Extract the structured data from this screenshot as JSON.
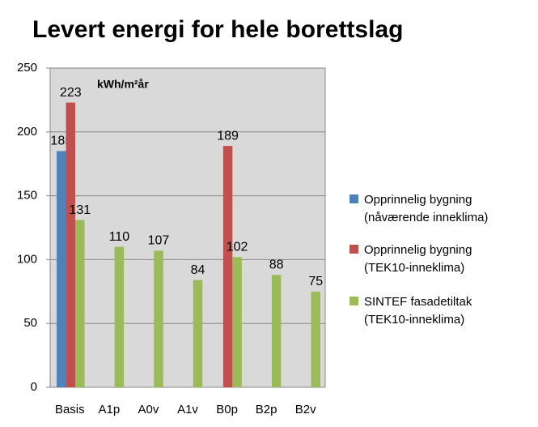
{
  "chart_data": {
    "type": "bar",
    "title": "Levert energi for hele borettslag",
    "unit_label": "kWh/m²år",
    "categories": [
      "Basis",
      "A1p",
      "A0v",
      "A1v",
      "B0p",
      "B2p",
      "B2v"
    ],
    "series": [
      {
        "name": "Opprinnelig bygning (nåværende inneklima)",
        "color": "#4f81bd",
        "values": [
          185,
          null,
          null,
          null,
          null,
          null,
          null
        ]
      },
      {
        "name": "Opprinnelig bygning (TEK10-inneklima)",
        "color": "#c0504d",
        "values": [
          223,
          null,
          null,
          null,
          189,
          null,
          null
        ]
      },
      {
        "name": "SINTEF fasadetiltak (TEK10-inneklima)",
        "color": "#9bbb59",
        "values": [
          131,
          110,
          107,
          84,
          102,
          88,
          75
        ]
      }
    ],
    "ylim": [
      0,
      250
    ],
    "yticks": [
      0,
      50,
      100,
      150,
      200,
      250
    ],
    "grid": true,
    "legend": "right"
  }
}
